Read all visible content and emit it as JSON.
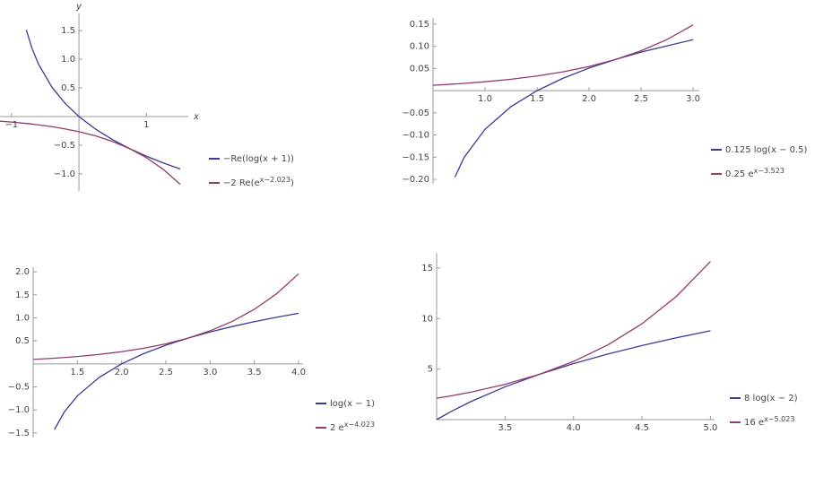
{
  "chart_data": [
    {
      "type": "line",
      "xlabel": "x",
      "ylabel": "y",
      "xlim": [
        -1.17,
        1.62
      ],
      "ylim": [
        -1.3,
        1.8
      ],
      "xticks": [
        {
          "value": -1,
          "label": "−1"
        },
        1
      ],
      "yticks": [
        {
          "value": -1.0,
          "label": "−1.0"
        },
        {
          "value": -0.5,
          "label": "−0.5"
        },
        0.5,
        {
          "value": 1.0,
          "label": "1.0"
        },
        1.5
      ],
      "x": [
        -1.17,
        -1.0,
        -0.78,
        -0.7,
        -0.6,
        -0.4,
        -0.2,
        0,
        0.25,
        0.5,
        0.75,
        1.0,
        1.25,
        1.5
      ],
      "series": [
        {
          "name": "−Re(log(x + 1))",
          "color": "#3b3b94",
          "values": [
            null,
            null,
            1.514,
            1.204,
            0.916,
            0.511,
            0.223,
            0,
            -0.223,
            -0.405,
            -0.56,
            -0.693,
            -0.811,
            -0.916
          ]
        },
        {
          "name": [
            {
              "text": "−2 Re(e"
            },
            {
              "sup": "x−2.023"
            },
            {
              "text": ")"
            }
          ],
          "color": "#94396b",
          "values": [
            -0.082,
            -0.097,
            -0.121,
            -0.131,
            -0.145,
            -0.177,
            -0.217,
            -0.265,
            -0.34,
            -0.436,
            -0.56,
            -0.719,
            -0.923,
            -1.185
          ]
        }
      ]
    },
    {
      "type": "line",
      "xlim": [
        0.5,
        3.06
      ],
      "ylim": [
        -0.21,
        0.164
      ],
      "xticks": [
        {
          "value": 1.0,
          "label": "1.0"
        },
        1.5,
        {
          "value": 2.0,
          "label": "2.0"
        },
        2.5,
        {
          "value": 3.0,
          "label": "3.0"
        }
      ],
      "yticks": [
        {
          "value": -0.2,
          "label": "−0.20"
        },
        {
          "value": -0.15,
          "label": "−0.15"
        },
        {
          "value": -0.1,
          "label": "−0.10"
        },
        {
          "value": -0.05,
          "label": "−0.05"
        },
        0.05,
        {
          "value": 0.1,
          "label": "0.10"
        },
        0.15
      ],
      "x": [
        0.5,
        0.71,
        0.8,
        1.0,
        1.25,
        1.5,
        1.75,
        2.0,
        2.25,
        2.5,
        2.75,
        3.0
      ],
      "series": [
        {
          "name": "0.125 log(x − 0.5)",
          "color": "#3b3b94",
          "values": [
            null,
            -0.195,
            -0.15,
            -0.087,
            -0.036,
            0,
            0.028,
            0.051,
            0.07,
            0.087,
            0.101,
            0.115
          ]
        },
        {
          "name": [
            {
              "text": "0.25 e"
            },
            {
              "sup": "x−3.523"
            }
          ],
          "color": "#94396b",
          "values": [
            0.0122,
            0.015,
            0.0164,
            0.0201,
            0.0257,
            0.0331,
            0.0425,
            0.0545,
            0.07,
            0.0899,
            0.1154,
            0.1482
          ]
        }
      ]
    },
    {
      "type": "line",
      "xlim": [
        1.0,
        4.05
      ],
      "ylim": [
        -1.6,
        2.1
      ],
      "xticks": [
        1.5,
        {
          "value": 2.0,
          "label": "2.0"
        },
        2.5,
        {
          "value": 3.0,
          "label": "3.0"
        },
        3.5,
        {
          "value": 4.0,
          "label": "4.0"
        }
      ],
      "yticks": [
        {
          "value": -1.5,
          "label": "−1.5"
        },
        {
          "value": -1.0,
          "label": "−1.0"
        },
        {
          "value": -0.5,
          "label": "−0.5"
        },
        0.5,
        {
          "value": 1.0,
          "label": "1.0"
        },
        1.5,
        {
          "value": 2.0,
          "label": "2.0"
        }
      ],
      "x": [
        1.0,
        1.24,
        1.35,
        1.5,
        1.75,
        2.0,
        2.25,
        2.5,
        2.75,
        3.0,
        3.25,
        3.5,
        3.75,
        4.0
      ],
      "series": [
        {
          "name": "log(x − 1)",
          "color": "#3b3b94",
          "values": [
            null,
            -1.427,
            -1.05,
            -0.693,
            -0.288,
            0,
            0.223,
            0.405,
            0.56,
            0.693,
            0.811,
            0.916,
            1.012,
            1.099
          ]
        },
        {
          "name": [
            {
              "text": "2 e"
            },
            {
              "sup": "x−4.023"
            }
          ],
          "color": "#94396b",
          "values": [
            0.097,
            0.124,
            0.138,
            0.16,
            0.206,
            0.265,
            0.34,
            0.436,
            0.56,
            0.719,
            0.923,
            1.185,
            1.522,
            1.955
          ]
        }
      ]
    },
    {
      "type": "line",
      "xlim": [
        3.0,
        5.03
      ],
      "ylim": [
        0,
        16.5
      ],
      "xticks": [
        3.5,
        {
          "value": 4.0,
          "label": "4.0"
        },
        4.5,
        {
          "value": 5.0,
          "label": "5.0"
        }
      ],
      "yticks": [
        5,
        10,
        15
      ],
      "x": [
        3.0,
        3.1,
        3.25,
        3.5,
        3.75,
        4.0,
        4.25,
        4.5,
        4.75,
        5.0
      ],
      "series": [
        {
          "name": "8 log(x − 2)",
          "color": "#3b3b94",
          "values": [
            0,
            0.762,
            1.785,
            3.244,
            4.477,
            5.545,
            6.487,
            7.33,
            8.093,
            8.789
          ]
        },
        {
          "name": [
            {
              "text": "16 e"
            },
            {
              "sup": "x−5.023"
            }
          ],
          "color": "#94396b",
          "values": [
            2.117,
            2.339,
            2.717,
            3.49,
            4.48,
            5.752,
            7.386,
            9.483,
            12.178,
            15.637
          ]
        }
      ]
    }
  ]
}
